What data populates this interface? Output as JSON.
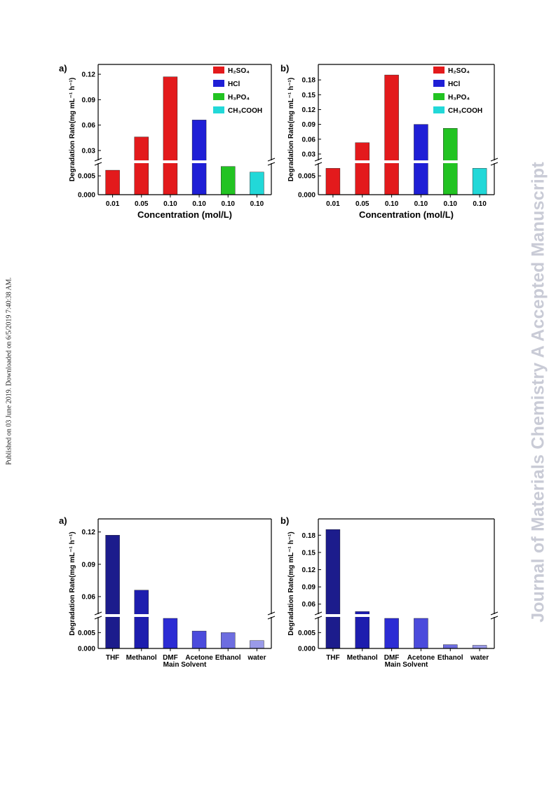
{
  "page": {
    "watermark": "Journal of Materials Chemistry A Accepted Manuscript",
    "sidenote": "Published on 03 June 2019. Downloaded on 6/5/2019 7:40:38 AM."
  },
  "chart_data": [
    {
      "panel": "a)",
      "type": "bar",
      "categories": [
        "0.01",
        "0.05",
        "0.10",
        "0.10",
        "0.10",
        "0.10"
      ],
      "values": [
        0.0065,
        0.046,
        0.117,
        0.066,
        0.0075,
        0.006
      ],
      "bar_colors": [
        "#e31a1c",
        "#e31a1c",
        "#e31a1c",
        "#1f1fd6",
        "#22c322",
        "#22d8d8"
      ],
      "xlabel": "Concentration (mol/L)",
      "ylabel": "Degradation Rate(mg mL⁻¹ h⁻¹)",
      "axis_break": {
        "low_range": [
          0,
          0.008
        ],
        "high_range": [
          0.02,
          0.125
        ]
      },
      "low_ticks": [
        "0.000",
        "0.005"
      ],
      "high_ticks": [
        "0.03",
        "0.06",
        "0.09",
        "0.12"
      ],
      "legend": [
        {
          "label": "H₂SO₄",
          "color": "#e31a1c"
        },
        {
          "label": "HCl",
          "color": "#1f1fd6"
        },
        {
          "label": "H₃PO₄",
          "color": "#22c322"
        },
        {
          "label": "CH₃COOH",
          "color": "#22d8d8"
        }
      ],
      "legend_placement": "top-right"
    },
    {
      "panel": "b)",
      "type": "bar",
      "categories": [
        "0.01",
        "0.05",
        "0.10",
        "0.10",
        "0.10",
        "0.10"
      ],
      "values": [
        0.007,
        0.053,
        0.19,
        0.09,
        0.082,
        0.007
      ],
      "bar_colors": [
        "#e31a1c",
        "#e31a1c",
        "#e31a1c",
        "#1f1fd6",
        "#22c322",
        "#22d8d8"
      ],
      "xlabel": "Concentration (mol/L)",
      "ylabel": "Degradation Rate(mg mL⁻¹ h⁻¹)",
      "axis_break": {
        "low_range": [
          0,
          0.008
        ],
        "high_range": [
          0.02,
          0.2
        ]
      },
      "low_ticks": [
        "0.000",
        "0.005"
      ],
      "high_ticks": [
        "0.03",
        "0.06",
        "0.09",
        "0.12",
        "0.15",
        "0.18"
      ],
      "legend": [
        {
          "label": "H₂SO₄",
          "color": "#e31a1c"
        },
        {
          "label": "HCl",
          "color": "#1f1fd6"
        },
        {
          "label": "H₃PO₄",
          "color": "#22c322"
        },
        {
          "label": "CH₃COOH",
          "color": "#22d8d8"
        }
      ],
      "legend_placement": "top-right"
    },
    {
      "panel": "a)",
      "type": "bar",
      "categories": [
        "THF",
        "Methanol",
        "DMF",
        "Acetone",
        "Ethanol",
        "water"
      ],
      "values": [
        0.117,
        0.066,
        0.0095,
        0.0055,
        0.005,
        0.0025
      ],
      "bar_colors": [
        "#1c1c8c",
        "#1d1dae",
        "#2c2cd4",
        "#4b4bdc",
        "#6d6de0",
        "#9a9ae8"
      ],
      "xlabel": "Main Solvent",
      "ylabel": "Degradation Rate(mg mL⁻¹ h⁻¹)",
      "axis_break": {
        "low_range": [
          0,
          0.0095
        ],
        "high_range": [
          0.045,
          0.125
        ]
      },
      "low_ticks": [
        "0.000",
        "0.005"
      ],
      "high_ticks": [
        "0.06",
        "0.09",
        "0.12"
      ],
      "legend": [],
      "legend_placement": "none"
    },
    {
      "panel": "b)",
      "type": "bar",
      "categories": [
        "THF",
        "Methanol",
        "DMF",
        "Acetone",
        "Ethanol",
        "water"
      ],
      "values": [
        0.19,
        0.047,
        0.0095,
        0.0095,
        0.0012,
        0.001
      ],
      "bar_colors": [
        "#1c1c8c",
        "#1d1dae",
        "#2c2cd4",
        "#4b4bdc",
        "#6d6de0",
        "#9a9ae8"
      ],
      "xlabel": "Main Solvent",
      "ylabel": "Degradation Rate(mg mL⁻¹ h⁻¹)",
      "axis_break": {
        "low_range": [
          0,
          0.0095
        ],
        "high_range": [
          0.045,
          0.195
        ]
      },
      "low_ticks": [
        "0.000",
        "0.005"
      ],
      "high_ticks": [
        "0.06",
        "0.09",
        "0.12",
        "0.15",
        "0.18"
      ],
      "legend": [],
      "legend_placement": "none"
    }
  ]
}
